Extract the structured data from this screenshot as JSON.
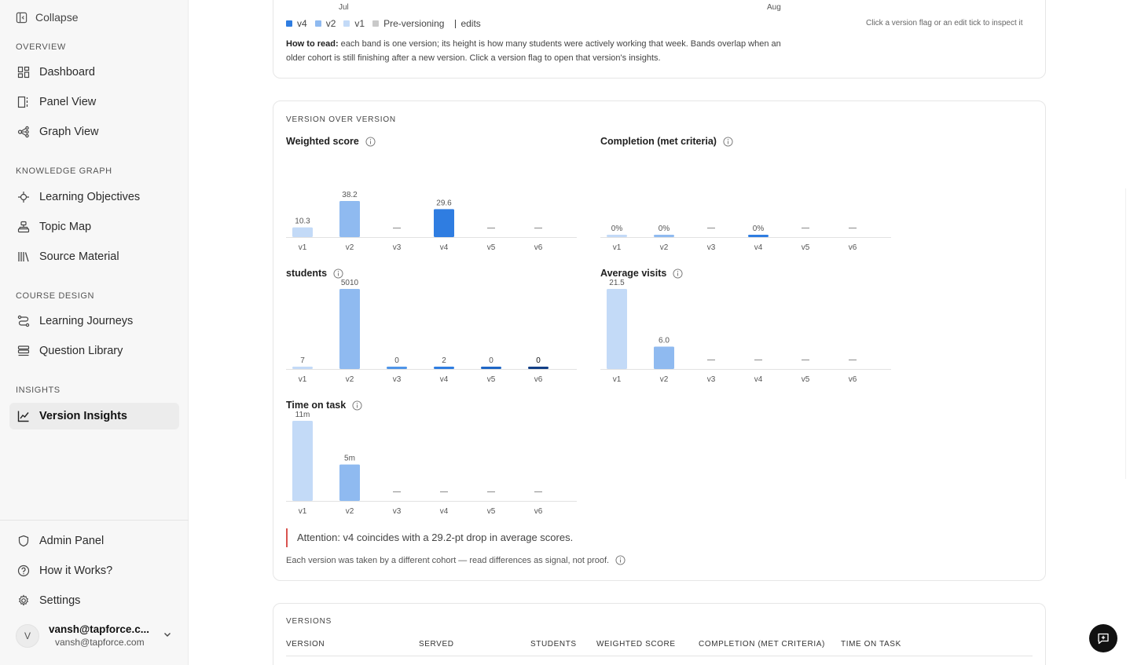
{
  "sidebar": {
    "collapse_label": "Collapse",
    "sections": {
      "overview": "OVERVIEW",
      "knowledge_graph": "KNOWLEDGE GRAPH",
      "course_design": "COURSE DESIGN",
      "insights": "INSIGHTS"
    },
    "items": {
      "dashboard": "Dashboard",
      "panel_view": "Panel View",
      "graph_view": "Graph View",
      "learning_objectives": "Learning Objectives",
      "topic_map": "Topic Map",
      "source_material": "Source Material",
      "learning_journeys": "Learning Journeys",
      "question_library": "Question Library",
      "version_insights": "Version Insights"
    },
    "footer": {
      "admin_panel": "Admin Panel",
      "how_it_works": "How it Works?",
      "settings": "Settings"
    },
    "user": {
      "initial": "V",
      "name": "vansh@tapforce.c...",
      "email": "vansh@tapforce.com"
    }
  },
  "timeline": {
    "months": [
      "Jul",
      "Aug"
    ],
    "legend": [
      {
        "label": "v4",
        "color": "#2f7de1"
      },
      {
        "label": "v2",
        "color": "#8fbaf0"
      },
      {
        "label": "v1",
        "color": "#c3daf7"
      },
      {
        "label": "Pre-versioning",
        "color": "#c9c9c9"
      }
    ],
    "edits_label": "edits",
    "hint": "Click a version flag or an edit tick to inspect it",
    "how_to_read_label": "How to read:",
    "how_to_read_text": " each band is one version; its height is how many students were actively working that week. Bands overlap when an older cohort is still finishing after a new version. Click a version flag to open that version's insights."
  },
  "version_over_version": {
    "title": "VERSION OVER VERSION",
    "metrics": {
      "weighted_score": "Weighted score",
      "completion": "Completion (met criteria)",
      "students": "students",
      "average_visits": "Average visits",
      "time_on_task": "Time on task"
    },
    "attention": "Attention: v4 coincides with a 29.2-pt drop in average scores.",
    "footnote": "Each version was taken by a different cohort — read differences as signal, not proof."
  },
  "versions_table": {
    "title": "VERSIONS",
    "columns": [
      "VERSION",
      "SERVED",
      "STUDENTS",
      "WEIGHTED SCORE",
      "COMPLETION (MET CRITERIA)",
      "TIME ON TASK"
    ]
  },
  "colors": {
    "v1": "#c3daf7",
    "v2": "#8fbaf0",
    "v3": "#4f95e8",
    "v4": "#2f7de1",
    "v5": "#1f66c5",
    "v6": "#123f86",
    "attention": "#d9534f"
  },
  "chart_data": [
    {
      "type": "bar",
      "title": "Weighted score",
      "categories": [
        "v1",
        "v2",
        "v3",
        "v4",
        "v5",
        "v6"
      ],
      "values": [
        10.3,
        38.2,
        null,
        29.6,
        null,
        null
      ],
      "labels": [
        "10.3",
        "38.2",
        "—",
        "29.6",
        "—",
        "—"
      ]
    },
    {
      "type": "bar",
      "title": "Completion (met criteria)",
      "categories": [
        "v1",
        "v2",
        "v3",
        "v4",
        "v5",
        "v6"
      ],
      "values": [
        0,
        0,
        null,
        0,
        null,
        null
      ],
      "labels": [
        "0%",
        "0%",
        "—",
        "0%",
        "—",
        "—"
      ]
    },
    {
      "type": "bar",
      "title": "students",
      "categories": [
        "v1",
        "v2",
        "v3",
        "v4",
        "v5",
        "v6"
      ],
      "values": [
        7,
        5010,
        0,
        2,
        0,
        0
      ],
      "labels": [
        "7",
        "5010",
        "0",
        "2",
        "0",
        "0"
      ]
    },
    {
      "type": "bar",
      "title": "Average visits",
      "categories": [
        "v1",
        "v2",
        "v3",
        "v4",
        "v5",
        "v6"
      ],
      "values": [
        21.5,
        6.0,
        null,
        null,
        null,
        null
      ],
      "labels": [
        "21.5",
        "6.0",
        "—",
        "—",
        "—",
        "—"
      ]
    },
    {
      "type": "bar",
      "title": "Time on task",
      "categories": [
        "v1",
        "v2",
        "v3",
        "v4",
        "v5",
        "v6"
      ],
      "values": [
        11,
        5,
        null,
        null,
        null,
        null
      ],
      "labels": [
        "11m",
        "5m",
        "—",
        "—",
        "—",
        "—"
      ]
    }
  ]
}
